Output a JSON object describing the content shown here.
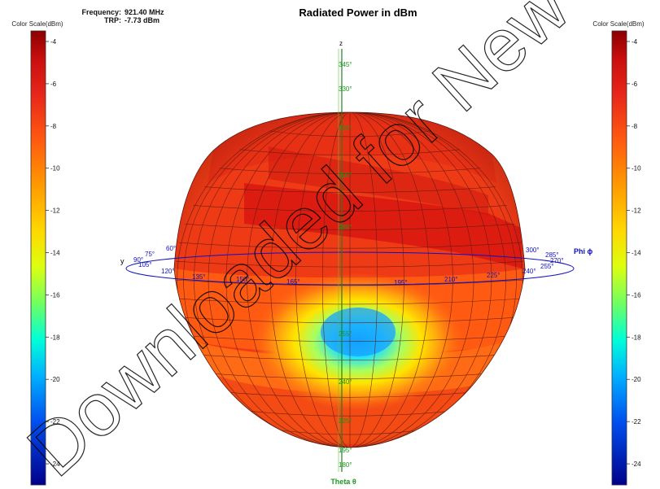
{
  "header": {
    "title": "Radiated Power in dBm",
    "frequency_label": "Frequency:",
    "frequency_value": "921.40 MHz",
    "trp_label": "TRP:",
    "trp_value": "-7.73 dBm"
  },
  "colorbar": {
    "label": "Color Scale(dBm)",
    "ticks": [
      "-4",
      "-6",
      "-8",
      "-10",
      "-12",
      "-14",
      "-16",
      "-18",
      "-20",
      "-22",
      "-24"
    ],
    "colors": [
      "#8b0000",
      "#e0201a",
      "#ff5a10",
      "#ff8c00",
      "#ffd200",
      "#e8ff00",
      "#7fff40",
      "#00e8ff",
      "#0090ff",
      "#0030e0",
      "#00009a"
    ]
  },
  "watermark": "Downloaded for New Devices",
  "chart_data": {
    "type": "heatmap",
    "title": "Radiated Power in dBm",
    "frequency": "921.40 MHz",
    "trp": "-7.73 dBm",
    "unit": "dBm",
    "color_scale_range": [
      -25,
      -3.5
    ],
    "color_scale_ticks": [
      -4,
      -6,
      -8,
      -10,
      -12,
      -14,
      -16,
      -18,
      -20,
      -22,
      -24
    ],
    "axes": {
      "z_label": "z",
      "y_label": "y",
      "phi_label": "Phi ϕ",
      "theta_label": "Theta θ"
    },
    "phi_ticks_left": [
      "60°",
      "75°",
      "90°",
      "105°",
      "120°"
    ],
    "phi_ticks_front": [
      "135°",
      "150°",
      "165°",
      "195°",
      "210°",
      "225°",
      "240°"
    ],
    "phi_ticks_right": [
      "300°",
      "285°",
      "270°",
      "255°"
    ],
    "theta_ticks": [
      "345°",
      "330°",
      "315°",
      "300°",
      "285°",
      "255°",
      "240°",
      "225°",
      "195°",
      "180°"
    ],
    "pattern": {
      "dominant_level_dbm": -7,
      "peak_level_dbm": -5,
      "null_level_dbm": -18,
      "null_region": "lower front, below the horizontal plane"
    }
  }
}
